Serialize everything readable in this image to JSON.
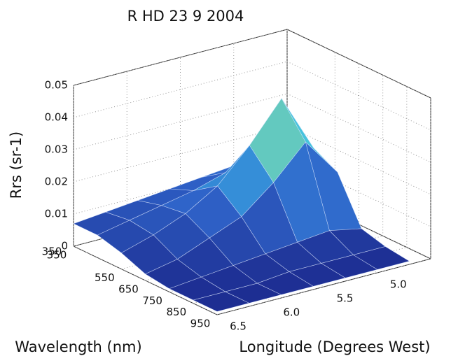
{
  "chart_data": {
    "type": "surface",
    "title": "R HD 23 9 2004",
    "zlabel": "Rrs (sr-1)",
    "xlabel": "Wavelength (nm)",
    "ylabel": "Longitude (Degrees West)",
    "corner_label": "350",
    "x": [
      350,
      450,
      550,
      650,
      750,
      850,
      950
    ],
    "y": [
      4.7,
      5.0,
      5.3,
      5.6,
      5.9,
      6.2,
      6.5
    ],
    "z": [
      [
        0.012,
        0.015,
        0.022,
        0.018,
        0.004,
        0.002,
        0.001
      ],
      [
        0.012,
        0.018,
        0.04,
        0.03,
        0.006,
        0.002,
        0.001
      ],
      [
        0.011,
        0.016,
        0.028,
        0.02,
        0.005,
        0.002,
        0.001
      ],
      [
        0.01,
        0.013,
        0.018,
        0.012,
        0.004,
        0.002,
        0.001
      ],
      [
        0.009,
        0.011,
        0.012,
        0.008,
        0.003,
        0.001,
        0.001
      ],
      [
        0.008,
        0.009,
        0.008,
        0.004,
        0.002,
        0.001,
        0.001
      ],
      [
        0.007,
        0.007,
        0.005,
        0.002,
        0.001,
        0.001,
        0.001
      ]
    ],
    "xlim": [
      350,
      950
    ],
    "xticks": [
      350,
      550,
      650,
      750,
      850,
      950
    ],
    "ylim": [
      6.5,
      4.5
    ],
    "yticks": [
      {
        "value": 6.5,
        "label": "6.5"
      },
      {
        "value": 6,
        "label": "6.0"
      },
      5.5,
      {
        "value": 5,
        "label": "5.0"
      }
    ],
    "zlim": [
      0,
      0.05
    ],
    "zticks": [
      0,
      0.01,
      0.02,
      0.03,
      0.04,
      0.05
    ],
    "grid": true,
    "colormap": [
      "#1c2a8e",
      "#2f63c9",
      "#3cc0ea",
      "#f2ea1e"
    ]
  }
}
